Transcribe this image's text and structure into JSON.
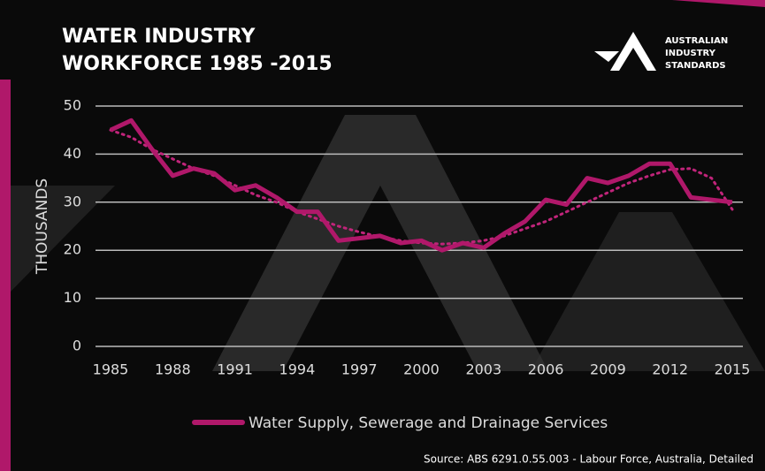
{
  "chart_data": {
    "type": "line",
    "title": [
      "WATER INDUSTRY",
      "WORKFORCE 1985 -2015"
    ],
    "logo": [
      "AUSTRALIAN",
      "INDUSTRY",
      "STANDARDS"
    ],
    "y_label": "THOUSANDS",
    "source": "Source: ABS 6291.0.55.003 - Labour Force, Australia, Detailed",
    "x": [
      1985,
      1986,
      1987,
      1988,
      1989,
      1990,
      1991,
      1992,
      1993,
      1994,
      1995,
      1996,
      1997,
      1998,
      1999,
      2000,
      2001,
      2002,
      2003,
      2004,
      2005,
      2006,
      2007,
      2008,
      2009,
      2010,
      2011,
      2012,
      2013,
      2014,
      2015
    ],
    "xlim": [
      1985,
      2015
    ],
    "xticks": [
      1985,
      1988,
      1991,
      1994,
      1997,
      2000,
      2003,
      2006,
      2009,
      2012,
      2015
    ],
    "ylim": [
      0,
      50
    ],
    "yticks": [
      0,
      10,
      20,
      30,
      40,
      50
    ],
    "grid": true,
    "series": [
      {
        "name": "Water Supply, Sewerage and Drainage Services",
        "color": "#b0186a",
        "values": [
          45,
          47,
          41,
          35.5,
          37,
          36,
          32.5,
          33.5,
          31,
          28,
          28,
          22,
          22.5,
          23,
          21.5,
          22,
          20,
          21.5,
          20.5,
          23.5,
          26,
          30.5,
          29.5,
          35,
          34,
          35.5,
          38,
          38,
          31,
          30.5,
          30
        ]
      }
    ],
    "trendline": {
      "color": "#c0247a",
      "values": [
        45,
        43.5,
        41,
        39,
        37,
        35.5,
        33.5,
        31.5,
        30,
        28,
        26.5,
        25,
        23.8,
        22.8,
        22,
        21.5,
        21.3,
        21.5,
        22,
        23,
        24.5,
        26,
        28,
        30,
        32,
        34,
        35.5,
        36.8,
        37,
        35,
        28.5
      ]
    }
  }
}
